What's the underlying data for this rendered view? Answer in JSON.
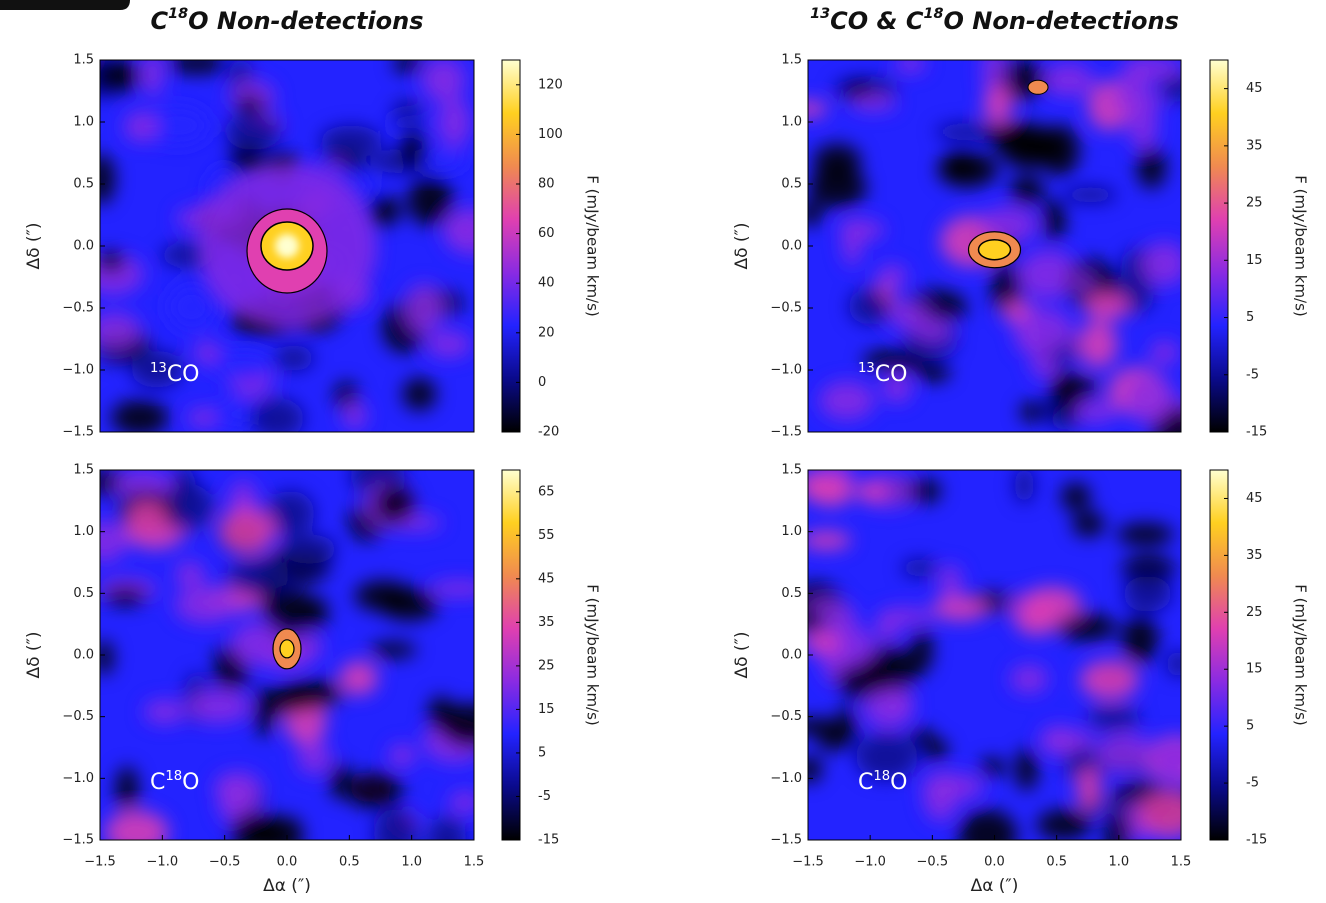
{
  "chart_data": [
    {
      "type": "image",
      "title": [
        "C",
        "18",
        "O Non-detections"
      ],
      "panel_label": [
        "13",
        "CO"
      ],
      "ylabel": "Δδ (″)",
      "xlim": [
        -1.5,
        1.5
      ],
      "ylim": [
        -1.5,
        1.5
      ],
      "yticks": [
        {
          "value": 1.5,
          "label": "1.5"
        },
        {
          "value": 1.0,
          "label": "1.0"
        },
        {
          "value": 0.5,
          "label": "0.5"
        },
        {
          "value": 0.0,
          "label": "0.0"
        },
        {
          "value": -0.5,
          "label": "−0.5"
        },
        {
          "value": -1.0,
          "label": "−1.0"
        },
        {
          "value": -1.5,
          "label": "−1.5"
        }
      ],
      "colorbar": {
        "label": "F (mJy/beam km/s)",
        "lim": [
          -20,
          130
        ],
        "ticks": [
          120,
          100,
          80,
          60,
          40,
          20,
          0,
          -20
        ]
      },
      "colormap": [
        "#000000",
        "#0a0a8a",
        "#2323ff",
        "#8a2be2",
        "#e040b0",
        "#f08a50",
        "#ffd020",
        "#ffffd0"
      ]
    },
    {
      "type": "image",
      "title": [
        "13",
        "CO & C",
        "18",
        "O Non-detections"
      ],
      "panel_label": [
        "13",
        "CO"
      ],
      "ylabel": "Δδ (″)",
      "xlim": [
        -1.5,
        1.5
      ],
      "ylim": [
        -1.5,
        1.5
      ],
      "yticks": [
        {
          "value": 1.5,
          "label": "1.5"
        },
        {
          "value": 1.0,
          "label": "1.0"
        },
        {
          "value": 0.5,
          "label": "0.5"
        },
        {
          "value": 0.0,
          "label": "0.0"
        },
        {
          "value": -0.5,
          "label": "−0.5"
        },
        {
          "value": -1.0,
          "label": "−1.0"
        },
        {
          "value": -1.5,
          "label": "−1.5"
        }
      ],
      "colorbar": {
        "label": "F (mJy/beam km/s)",
        "lim": [
          -15,
          50
        ],
        "ticks": [
          45,
          35,
          25,
          15,
          5,
          -5,
          -15
        ]
      },
      "colormap": [
        "#000000",
        "#0a0a8a",
        "#2323ff",
        "#8a2be2",
        "#e040b0",
        "#f08a50",
        "#ffd020",
        "#ffffd0"
      ]
    },
    {
      "type": "image",
      "panel_label": [
        "C",
        "18",
        "O"
      ],
      "ylabel": "Δδ (″)",
      "xlabel": "Δα (″)",
      "xlim": [
        -1.5,
        1.5
      ],
      "ylim": [
        -1.5,
        1.5
      ],
      "xticks": [
        {
          "value": -1.5,
          "label": "−1.5"
        },
        {
          "value": -1.0,
          "label": "−1.0"
        },
        {
          "value": -0.5,
          "label": "−0.5"
        },
        {
          "value": 0.0,
          "label": "0.0"
        },
        {
          "value": 0.5,
          "label": "0.5"
        },
        {
          "value": 1.0,
          "label": "1.0"
        },
        {
          "value": 1.5,
          "label": "1.5"
        }
      ],
      "yticks": [
        {
          "value": 1.5,
          "label": "1.5"
        },
        {
          "value": 1.0,
          "label": "1.0"
        },
        {
          "value": 0.5,
          "label": "0.5"
        },
        {
          "value": 0.0,
          "label": "0.0"
        },
        {
          "value": -0.5,
          "label": "−0.5"
        },
        {
          "value": -1.0,
          "label": "−1.0"
        },
        {
          "value": -1.5,
          "label": "−1.5"
        }
      ],
      "colorbar": {
        "label": "F (mJy/beam km/s)",
        "lim": [
          -15,
          70
        ],
        "ticks": [
          65,
          55,
          45,
          35,
          25,
          15,
          5,
          -5,
          -15
        ]
      },
      "colormap": [
        "#000000",
        "#0a0a8a",
        "#2323ff",
        "#8a2be2",
        "#e040b0",
        "#f08a50",
        "#ffd020",
        "#ffffd0"
      ]
    },
    {
      "type": "image",
      "panel_label": [
        "C",
        "18",
        "O"
      ],
      "ylabel": "Δδ (″)",
      "xlabel": "Δα (″)",
      "xlim": [
        -1.5,
        1.5
      ],
      "ylim": [
        -1.5,
        1.5
      ],
      "xticks": [
        {
          "value": -1.5,
          "label": "−1.5"
        },
        {
          "value": -1.0,
          "label": "−1.0"
        },
        {
          "value": -0.5,
          "label": "−0.5"
        },
        {
          "value": 0.0,
          "label": "0.0"
        },
        {
          "value": 0.5,
          "label": "0.5"
        },
        {
          "value": 1.0,
          "label": "1.0"
        },
        {
          "value": 1.5,
          "label": "1.5"
        }
      ],
      "yticks": [
        {
          "value": 1.5,
          "label": "1.5"
        },
        {
          "value": 1.0,
          "label": "1.0"
        },
        {
          "value": 0.5,
          "label": "0.5"
        },
        {
          "value": 0.0,
          "label": "0.0"
        },
        {
          "value": -0.5,
          "label": "−0.5"
        },
        {
          "value": -1.0,
          "label": "−1.0"
        },
        {
          "value": -1.5,
          "label": "−1.5"
        }
      ],
      "colorbar": {
        "label": "F (mJy/beam km/s)",
        "lim": [
          -15,
          50
        ],
        "ticks": [
          45,
          35,
          25,
          15,
          5,
          -5,
          -15
        ]
      },
      "colormap": [
        "#000000",
        "#0a0a8a",
        "#2323ff",
        "#8a2be2",
        "#e040b0",
        "#f08a50",
        "#ffd020",
        "#ffffd0"
      ]
    }
  ]
}
